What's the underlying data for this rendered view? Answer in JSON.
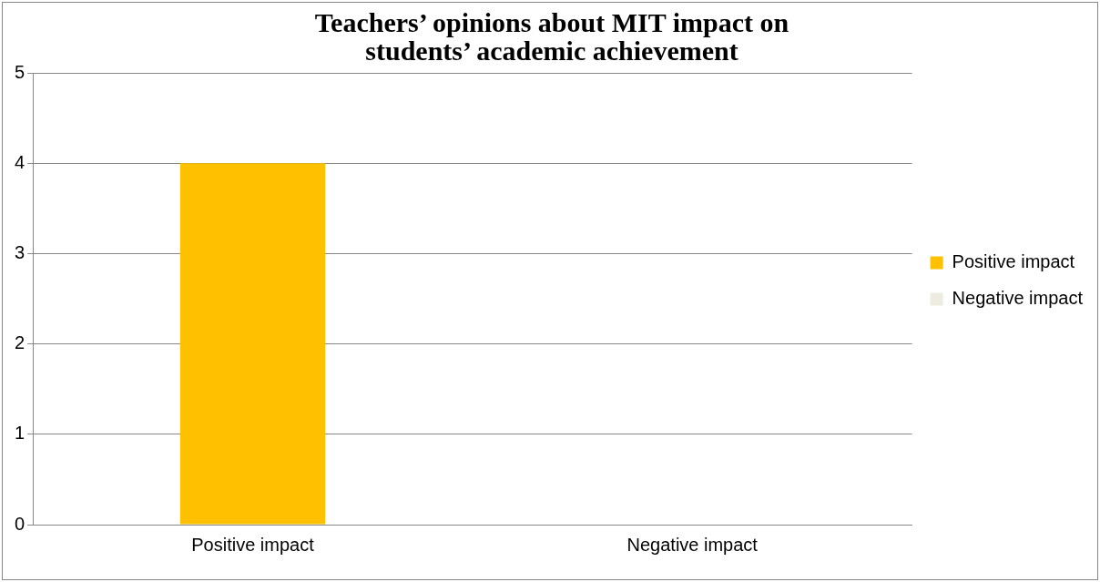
{
  "chart_data": {
    "type": "bar",
    "title": "Teachers’ opinions about MIT impact on students’ academic achievement",
    "categories": [
      "Positive impact",
      "Negative impact"
    ],
    "series": [
      {
        "name": "Positive impact",
        "color": "#ffc000",
        "values": [
          4,
          null
        ]
      },
      {
        "name": "Negative impact",
        "color": "#eeece1",
        "values": [
          null,
          0
        ]
      }
    ],
    "ylim": [
      0,
      5
    ],
    "yticks": [
      0,
      1,
      2,
      3,
      4,
      5
    ],
    "grid": "y",
    "legend": "right"
  }
}
